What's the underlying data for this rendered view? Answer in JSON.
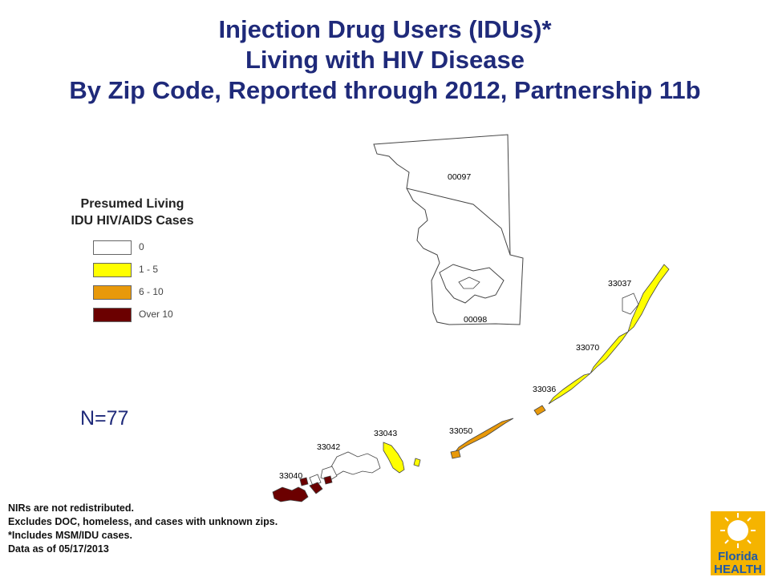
{
  "title": {
    "line1": "Injection Drug Users (IDUs)*",
    "line2": "Living with HIV Disease",
    "line3": "By Zip Code, Reported through 2012, Partnership 11b"
  },
  "legend": {
    "title_line1": "Presumed Living",
    "title_line2": "IDU HIV/AIDS Cases",
    "items": [
      {
        "label": "0",
        "color": "#ffffff"
      },
      {
        "label": "1 - 5",
        "color": "#ffff00"
      },
      {
        "label": "6 - 10",
        "color": "#e8990a"
      },
      {
        "label": "Over 10",
        "color": "#6b0000"
      }
    ]
  },
  "n_count": "N=77",
  "zips": {
    "z00097": "00097",
    "z00098": "00098",
    "z33037": "33037",
    "z33070": "33070",
    "z33036": "33036",
    "z33050": "33050",
    "z33043": "33043",
    "z33042": "33042",
    "z33040": "33040"
  },
  "footnotes": {
    "line1": "NIRs are not redistributed.",
    "line2": "Excludes DOC, homeless, and cases with unknown zips.",
    "line3": "*Includes MSM/IDU cases.",
    "line4": "Data as of 05/17/2013"
  },
  "logo": {
    "line1": "Florida",
    "line2": "HEALTH"
  }
}
